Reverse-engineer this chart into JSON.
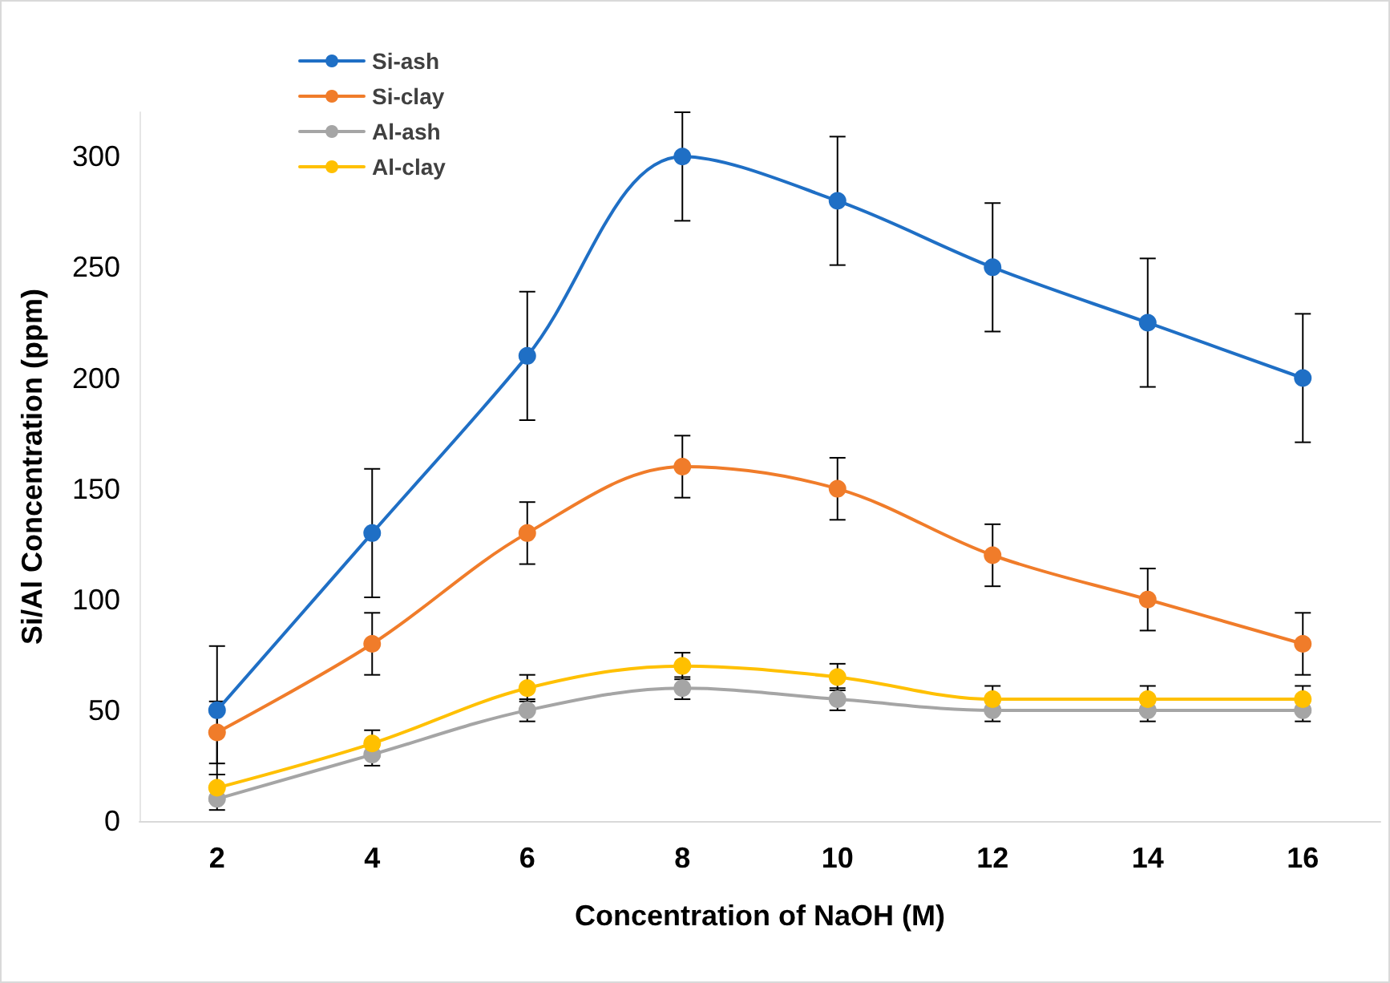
{
  "chart_data": {
    "type": "line",
    "xlabel": "Concentration of NaOH (M)",
    "ylabel": "Si/Al Concentration (ppm)",
    "categories": [
      "2",
      "4",
      "6",
      "8",
      "10",
      "12",
      "14",
      "16"
    ],
    "ylim": [
      0,
      320
    ],
    "yticks": [
      0,
      50,
      100,
      150,
      200,
      250,
      300
    ],
    "grid": false,
    "legend": "top left",
    "marker": "circle",
    "line_style": "solid",
    "series": [
      {
        "name": "Si-ash",
        "color": "#1f6fc5",
        "values": [
          50,
          130,
          210,
          300,
          280,
          250,
          225,
          200
        ],
        "errors": [
          29,
          29,
          29,
          [
            271,
            320
          ],
          29,
          29,
          29,
          29
        ]
      },
      {
        "name": "Si-clay",
        "color": "#f07c2a",
        "values": [
          40,
          80,
          130,
          160,
          150,
          120,
          100,
          80
        ],
        "errors": [
          14,
          14,
          14,
          14,
          14,
          14,
          14,
          14
        ]
      },
      {
        "name": "Al-ash",
        "color": "#a5a5a5",
        "values": [
          10,
          30,
          50,
          60,
          55,
          50,
          50,
          50
        ],
        "errors": [
          5,
          5,
          5,
          5,
          5,
          5,
          5,
          5
        ]
      },
      {
        "name": "Al-clay",
        "color": "#ffc000",
        "values": [
          15,
          35,
          60,
          70,
          65,
          55,
          55,
          55
        ],
        "errors": [
          6,
          6,
          6,
          6,
          6,
          6,
          6,
          6
        ]
      }
    ]
  }
}
